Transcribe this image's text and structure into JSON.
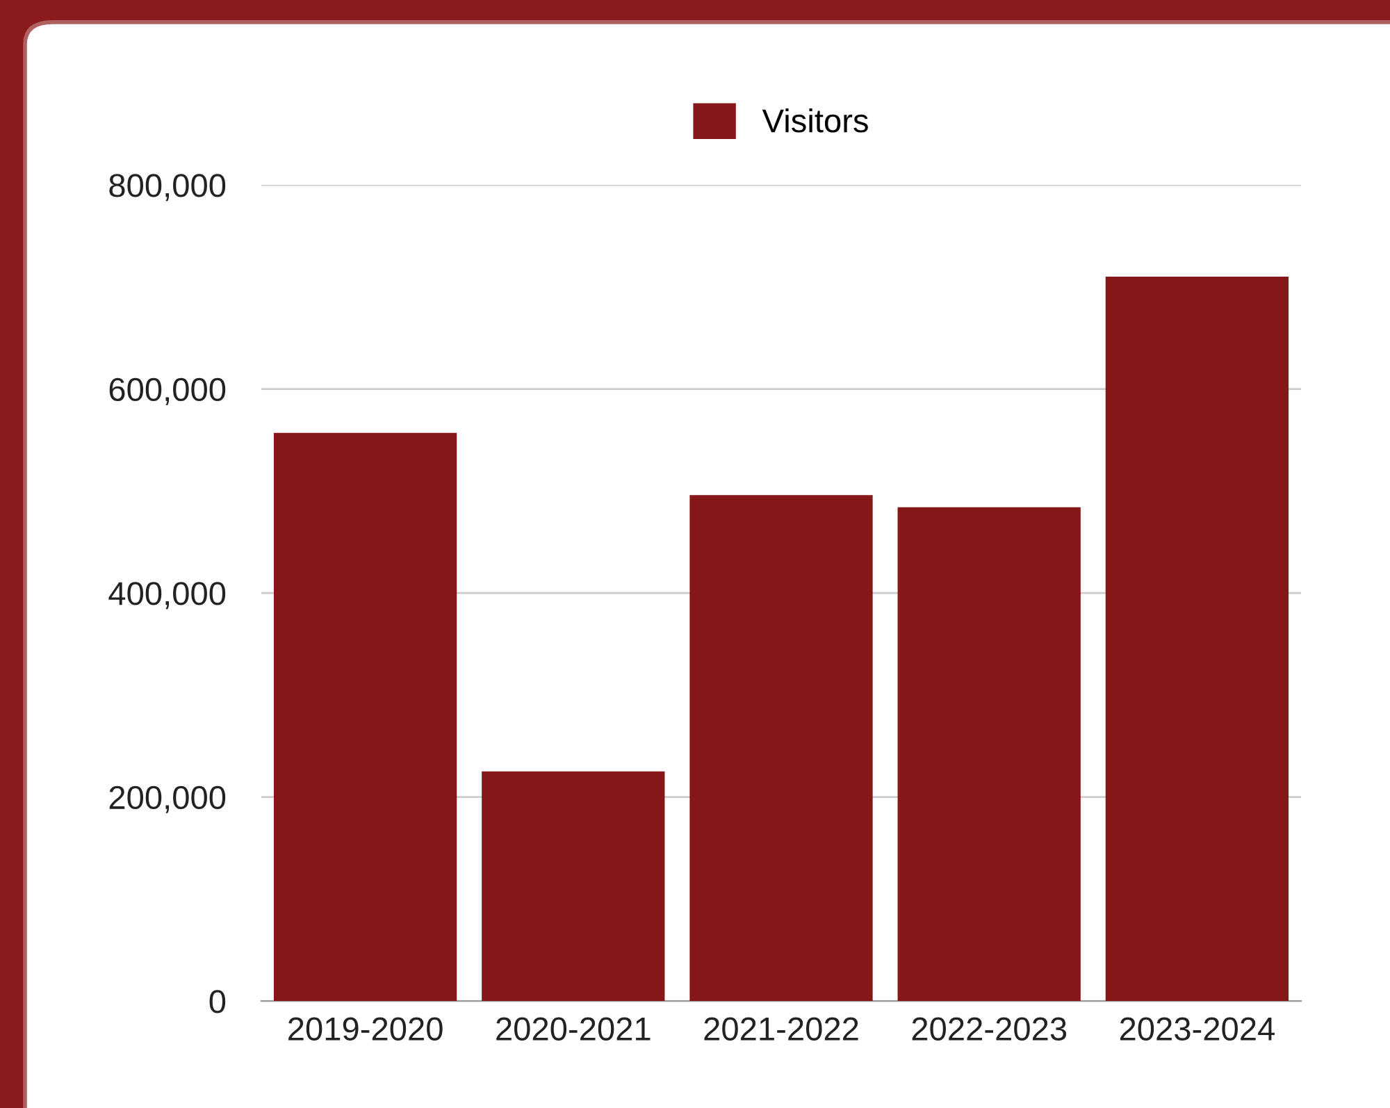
{
  "chart_data": {
    "type": "bar",
    "categories": [
      "2019-2020",
      "2020-2021",
      "2021-2022",
      "2022-2023",
      "2023-2024"
    ],
    "series": [
      {
        "name": "Visitors",
        "color": "#861719",
        "values": [
          557000,
          225000,
          496000,
          484000,
          710000
        ]
      }
    ],
    "ylim": [
      0,
      800000
    ],
    "yticks": [
      {
        "value": 0,
        "label": "0"
      },
      {
        "value": 200000,
        "label": "200,000"
      },
      {
        "value": 400000,
        "label": "400,000"
      },
      {
        "value": 600000,
        "label": "600,000"
      },
      {
        "value": 800000,
        "label": "800,000"
      }
    ],
    "grid": "y",
    "legend": "top"
  }
}
